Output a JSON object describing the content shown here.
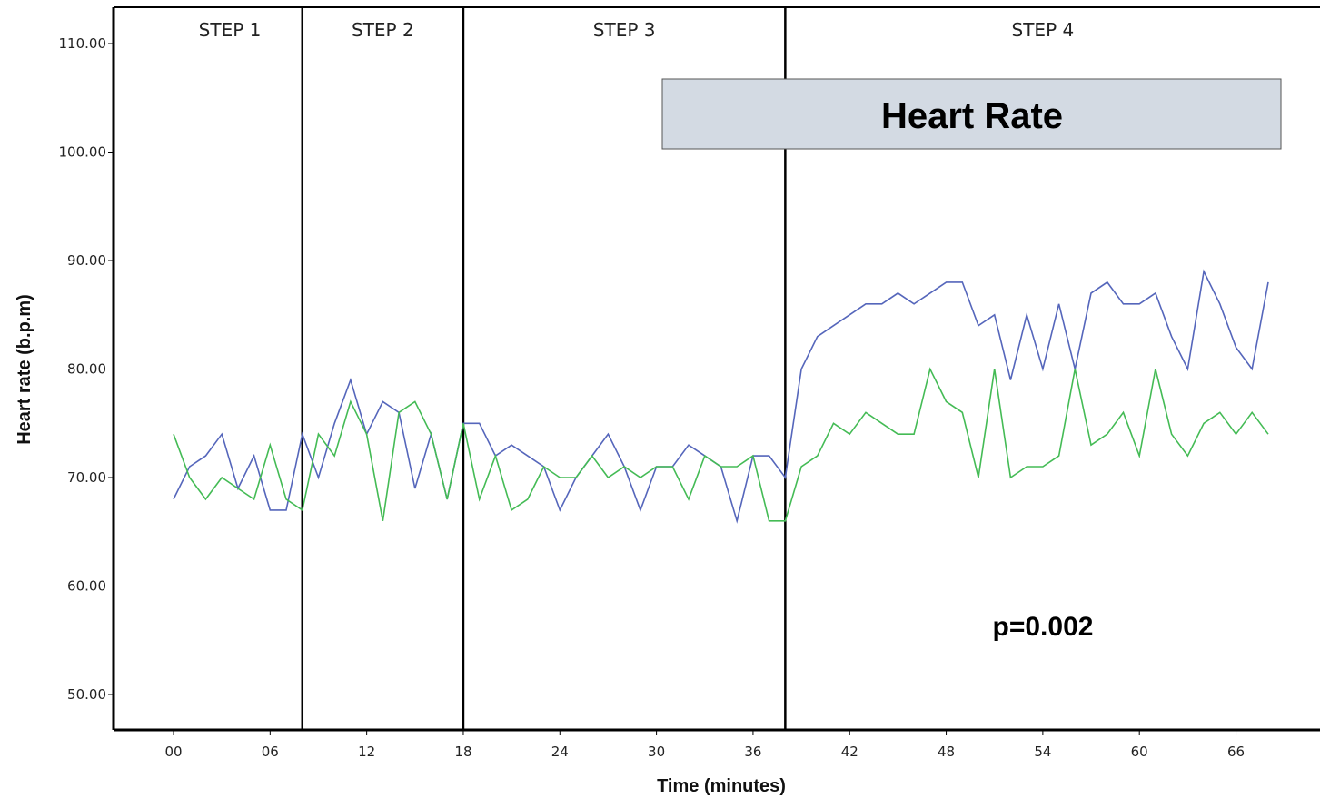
{
  "chart_data": {
    "type": "line",
    "title": "Heart Rate",
    "xlabel": "Time (minutes)",
    "ylabel": "Heart rate (b.p.m)",
    "xlim": [
      -1,
      70
    ],
    "ylim": [
      47,
      113
    ],
    "x_ticks": [
      0,
      6,
      12,
      18,
      24,
      30,
      36,
      42,
      48,
      54,
      60,
      66
    ],
    "x_tick_labels": [
      "00",
      "06",
      "12",
      "18",
      "24",
      "30",
      "36",
      "42",
      "48",
      "54",
      "60",
      "66"
    ],
    "y_ticks": [
      50,
      60,
      70,
      80,
      90,
      100,
      110
    ],
    "y_tick_labels": [
      "50.00",
      "60.00",
      "70.00",
      "80.00",
      "90.00",
      "100.00",
      "110.00"
    ],
    "grid": false,
    "legend": "none",
    "steps": [
      {
        "label": "STEP 1",
        "start": -1,
        "end": 8
      },
      {
        "label": "STEP 2",
        "start": 8,
        "end": 18
      },
      {
        "label": "STEP 3",
        "start": 18,
        "end": 38
      },
      {
        "label": "STEP 4",
        "start": 38,
        "end": 70
      }
    ],
    "annotation": "p=0.002",
    "x": [
      0,
      1,
      2,
      3,
      4,
      5,
      6,
      7,
      8,
      9,
      10,
      11,
      12,
      13,
      14,
      15,
      16,
      17,
      18,
      19,
      20,
      21,
      22,
      23,
      24,
      25,
      26,
      27,
      28,
      29,
      30,
      31,
      32,
      33,
      34,
      35,
      36,
      37,
      38,
      39,
      40,
      41,
      42,
      43,
      44,
      45,
      46,
      47,
      48,
      49,
      50,
      51,
      52,
      53,
      54,
      55,
      56,
      57,
      58,
      59,
      60,
      61,
      62,
      63,
      64,
      65,
      66,
      67,
      68
    ],
    "series": [
      {
        "color": "#5566bb",
        "values": [
          68,
          71,
          72,
          74,
          69,
          72,
          67,
          67,
          74,
          70,
          75,
          79,
          74,
          77,
          76,
          69,
          74,
          68,
          75,
          75,
          72,
          73,
          72,
          71,
          67,
          70,
          72,
          74,
          71,
          67,
          71,
          71,
          73,
          72,
          71,
          66,
          72,
          72,
          70,
          80,
          83,
          84,
          85,
          86,
          86,
          87,
          86,
          87,
          88,
          88,
          84,
          85,
          79,
          85,
          80,
          86,
          80,
          87,
          88,
          86,
          86,
          87,
          83,
          80,
          89,
          86,
          82,
          80,
          88
        ]
      },
      {
        "color": "#44bb55",
        "values": [
          74,
          70,
          68,
          70,
          69,
          68,
          73,
          68,
          67,
          74,
          72,
          77,
          74,
          66,
          76,
          77,
          74,
          68,
          75,
          68,
          72,
          67,
          68,
          71,
          70,
          70,
          72,
          70,
          71,
          70,
          71,
          71,
          68,
          72,
          71,
          71,
          72,
          66,
          66,
          71,
          72,
          75,
          74,
          76,
          75,
          74,
          74,
          80,
          77,
          76,
          70,
          80,
          70,
          71,
          71,
          72,
          80,
          73,
          74,
          76,
          72,
          80,
          74,
          72,
          75,
          76,
          74,
          76,
          74
        ]
      }
    ]
  }
}
